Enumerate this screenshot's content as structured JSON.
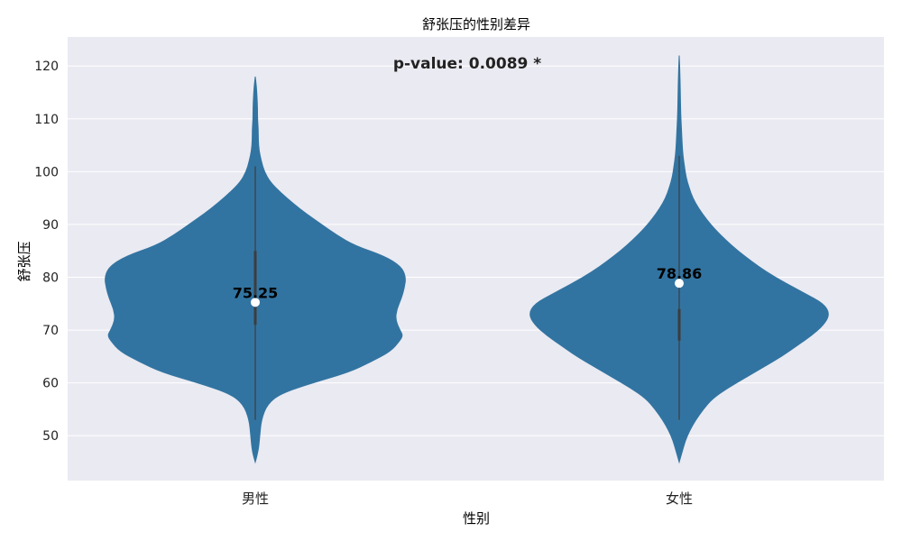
{
  "chart_data": {
    "type": "violin",
    "title": "舒张压的性别差异",
    "xlabel": "性别",
    "ylabel": "舒张压",
    "ylim": [
      41.5,
      125.5
    ],
    "yticks": [
      50,
      60,
      70,
      80,
      90,
      100,
      110,
      120
    ],
    "grid": true,
    "annotation": "p-value: 0.0089 *",
    "colors": {
      "violin": "#3274a1",
      "background": "#eaeaf2",
      "grid": "#ffffff",
      "inner": "#3d3d3d",
      "median_point": "#ffffff",
      "label": "#000000"
    },
    "categories": [
      "男性",
      "女性"
    ],
    "series": [
      {
        "category": "男性",
        "mean_label": "75.25",
        "mean": 75.25,
        "whisker": [
          53,
          101
        ],
        "quartiles": [
          71,
          85
        ],
        "range": [
          45,
          118
        ],
        "density_profile": [
          [
            45,
            0.0
          ],
          [
            47,
            0.02
          ],
          [
            50,
            0.03
          ],
          [
            53,
            0.04
          ],
          [
            56,
            0.08
          ],
          [
            58,
            0.17
          ],
          [
            60,
            0.38
          ],
          [
            62,
            0.62
          ],
          [
            64,
            0.77
          ],
          [
            66,
            0.9
          ],
          [
            68,
            0.96
          ],
          [
            69,
            0.98
          ],
          [
            70,
            0.96
          ],
          [
            72,
            0.93
          ],
          [
            74,
            0.94
          ],
          [
            76,
            0.97
          ],
          [
            78,
            0.99
          ],
          [
            80,
            1.0
          ],
          [
            82,
            0.97
          ],
          [
            84,
            0.86
          ],
          [
            86,
            0.66
          ],
          [
            88,
            0.54
          ],
          [
            90,
            0.44
          ],
          [
            92,
            0.34
          ],
          [
            94,
            0.25
          ],
          [
            96,
            0.17
          ],
          [
            98,
            0.1
          ],
          [
            100,
            0.06
          ],
          [
            102,
            0.04
          ],
          [
            104,
            0.025
          ],
          [
            106,
            0.02
          ],
          [
            108,
            0.02
          ],
          [
            110,
            0.015
          ],
          [
            112,
            0.015
          ],
          [
            114,
            0.012
          ],
          [
            116,
            0.008
          ],
          [
            118,
            0.0
          ]
        ]
      },
      {
        "category": "女性",
        "mean_label": "78.86",
        "mean": 78.86,
        "whisker": [
          53,
          103
        ],
        "quartiles": [
          68,
          74
        ],
        "range": [
          45,
          122
        ],
        "density_profile": [
          [
            45,
            0.0
          ],
          [
            47,
            0.02
          ],
          [
            49,
            0.04
          ],
          [
            51,
            0.07
          ],
          [
            53,
            0.11
          ],
          [
            55,
            0.16
          ],
          [
            57,
            0.22
          ],
          [
            59,
            0.32
          ],
          [
            61,
            0.44
          ],
          [
            63,
            0.56
          ],
          [
            65,
            0.68
          ],
          [
            67,
            0.78
          ],
          [
            69,
            0.88
          ],
          [
            71,
            0.96
          ],
          [
            73,
            1.0
          ],
          [
            75,
            0.96
          ],
          [
            77,
            0.83
          ],
          [
            79,
            0.7
          ],
          [
            81,
            0.58
          ],
          [
            83,
            0.48
          ],
          [
            85,
            0.39
          ],
          [
            87,
            0.31
          ],
          [
            89,
            0.24
          ],
          [
            91,
            0.18
          ],
          [
            93,
            0.13
          ],
          [
            95,
            0.09
          ],
          [
            97,
            0.065
          ],
          [
            99,
            0.045
          ],
          [
            101,
            0.035
          ],
          [
            103,
            0.025
          ],
          [
            105,
            0.02
          ],
          [
            108,
            0.015
          ],
          [
            111,
            0.01
          ],
          [
            114,
            0.008
          ],
          [
            117,
            0.006
          ],
          [
            120,
            0.003
          ],
          [
            122,
            0.0
          ]
        ]
      }
    ]
  }
}
